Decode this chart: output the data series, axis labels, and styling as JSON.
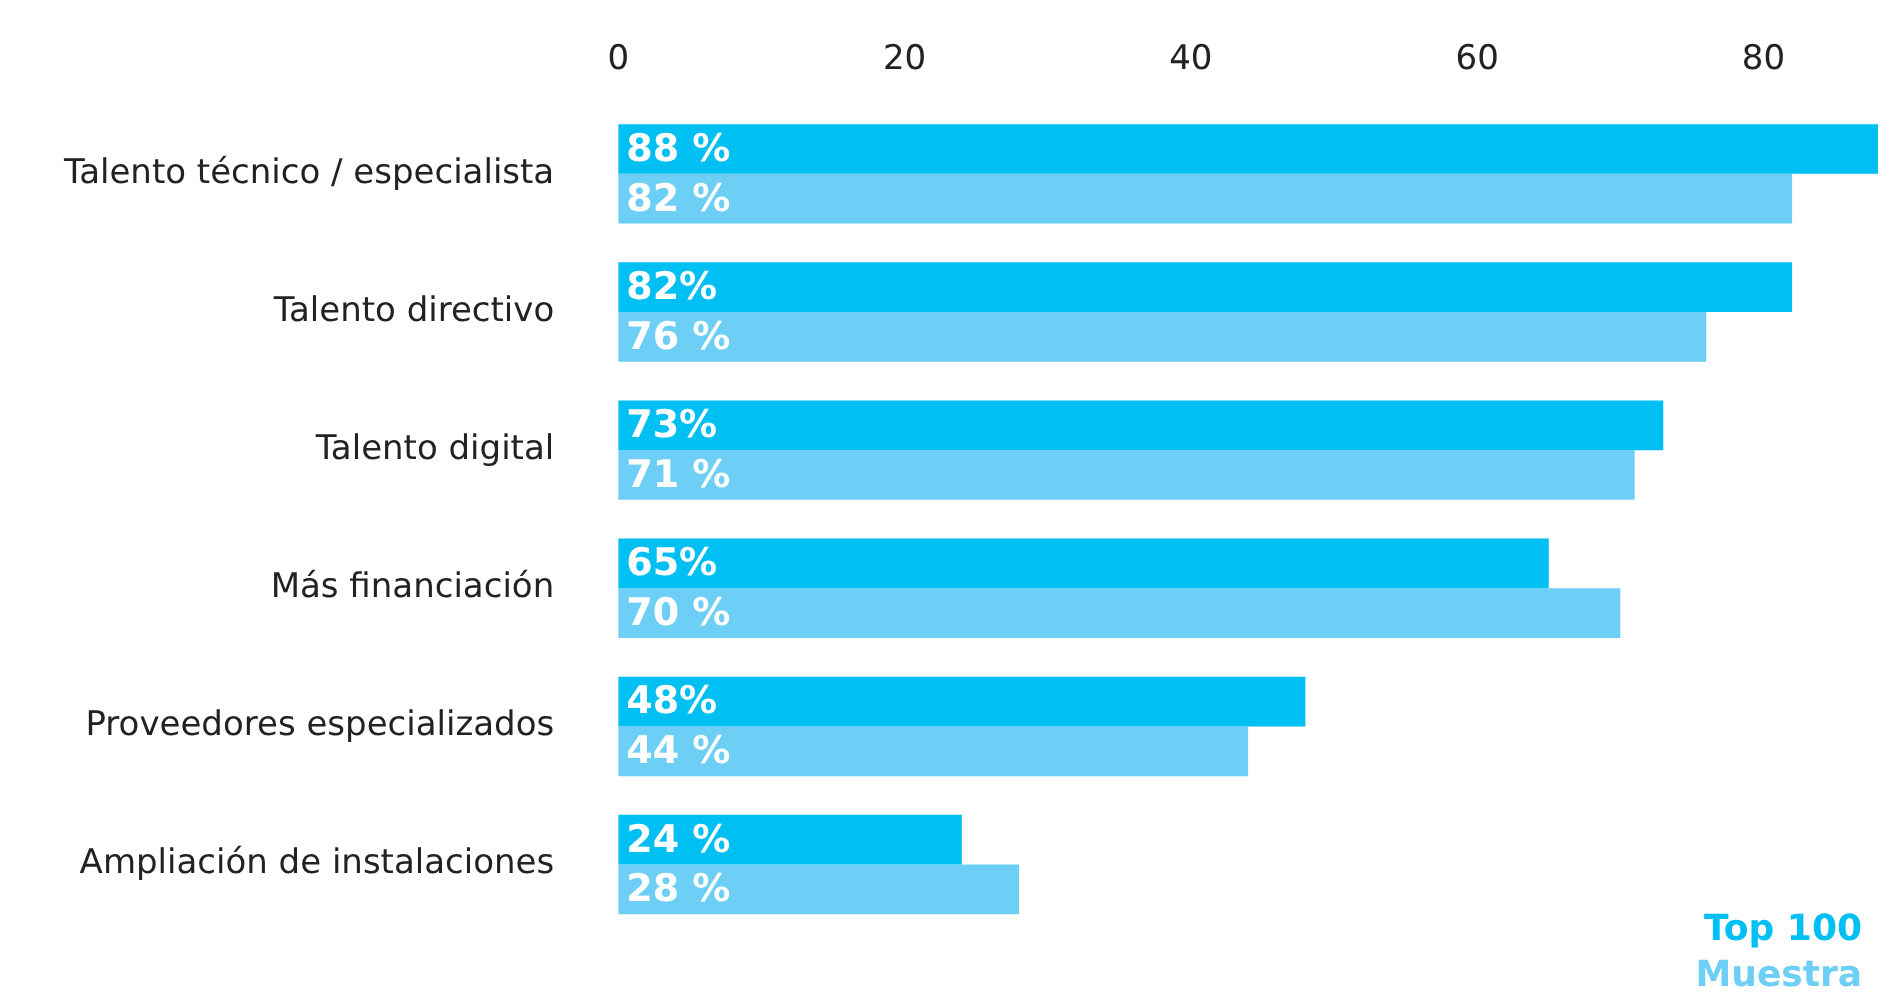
{
  "chart_data": {
    "type": "bar",
    "orientation": "horizontal",
    "categories": [
      "Talento técnico / especialista",
      "Talento directivo",
      "Talento digital",
      "Más financiación",
      "Proveedores especializados",
      "Ampliación de instalaciones"
    ],
    "series": [
      {
        "name": "Top 100",
        "color": "#00bff3",
        "values": [
          88,
          82,
          73,
          65,
          48,
          24
        ],
        "value_labels": [
          "88 %",
          "82%",
          "73%",
          "65%",
          "48%",
          "24 %"
        ]
      },
      {
        "name": "Muestra",
        "color": "#6dcff6",
        "values": [
          82,
          76,
          71,
          70,
          44,
          28
        ],
        "value_labels": [
          "82 %",
          "76 %",
          "71 %",
          "70 %",
          "44 %",
          "28 %"
        ]
      }
    ],
    "xlim": [
      0,
      88
    ],
    "xticks": [
      0,
      20,
      40,
      60,
      80
    ],
    "grid": false,
    "legend": "bottom right"
  }
}
